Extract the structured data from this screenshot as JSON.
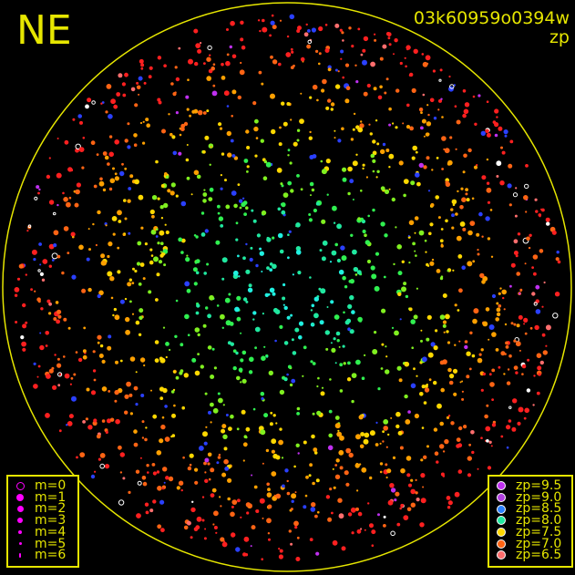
{
  "header": {
    "direction_label": "NE",
    "frame_id": "03k60959o0394w",
    "quantity": "zp"
  },
  "magnitude_legend": {
    "color": "#ff00ff",
    "items": [
      {
        "label": "m=0",
        "style": "ring"
      },
      {
        "label": "m=1",
        "style": "filled"
      },
      {
        "label": "m=2",
        "style": "filled"
      },
      {
        "label": "m=3",
        "style": "filled"
      },
      {
        "label": "m=4",
        "style": "filled"
      },
      {
        "label": "m=5",
        "style": "filled"
      },
      {
        "label": "m=6",
        "style": "filled"
      }
    ]
  },
  "zp_legend": {
    "items": [
      {
        "label": "zp=9.5",
        "color": "#c030f0"
      },
      {
        "label": "zp=9.0",
        "color": "#b040e0"
      },
      {
        "label": "zp=8.5",
        "color": "#2a80ff"
      },
      {
        "label": "zp=8.0",
        "color": "#20e8a0"
      },
      {
        "label": "zp=7.5",
        "color": "#ffd800"
      },
      {
        "label": "zp=7.0",
        "color": "#ff6414"
      },
      {
        "label": "zp=6.5",
        "color": "#ff6e6e"
      }
    ]
  },
  "colors": {
    "horizon": "#e6e600",
    "text": "#e6e600",
    "background": "#000000"
  }
}
